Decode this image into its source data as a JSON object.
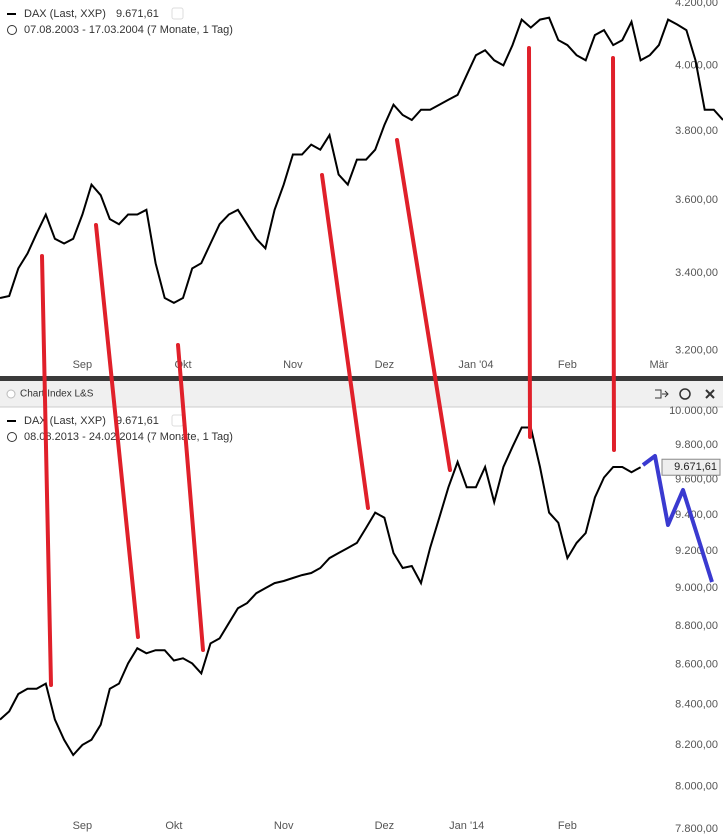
{
  "chart_data": [
    {
      "type": "line",
      "title": "DAX (Last, XXP)",
      "header_value": "9.671,61",
      "subtitle": "07.08.2003 - 17.03.2004 (7 Monate, 1 Tag)",
      "log_scale": true,
      "ylim": [
        3140,
        4210
      ],
      "yticks": [
        {
          "value": 3200,
          "label": "3.200,00"
        },
        {
          "value": 3400,
          "label": "3.400,00"
        },
        {
          "value": 3600,
          "label": "3.600,00"
        },
        {
          "value": 3800,
          "label": "3.800,00"
        },
        {
          "value": 4000,
          "label": "4.000,00"
        },
        {
          "value": 4200,
          "label": "4.200,00"
        }
      ],
      "categories": [
        null,
        null,
        null,
        null,
        null,
        null,
        null,
        null,
        null,
        "Sep",
        null,
        null,
        null,
        null,
        null,
        null,
        null,
        null,
        null,
        null,
        "Okt",
        null,
        null,
        null,
        null,
        null,
        null,
        null,
        null,
        null,
        null,
        null,
        "Nov",
        null,
        null,
        null,
        null,
        null,
        null,
        null,
        null,
        null,
        "Dez",
        null,
        null,
        null,
        null,
        null,
        null,
        null,
        null,
        null,
        "Jan '04",
        null,
        null,
        null,
        null,
        null,
        null,
        null,
        null,
        null,
        "Feb",
        null,
        null,
        null,
        null,
        null,
        null,
        null,
        null,
        null,
        "Mär",
        null,
        null,
        null,
        null,
        null,
        null,
        null
      ],
      "series": [
        {
          "name": "DAX (Last, XXP)",
          "color": "#000000",
          "values": [
            3335,
            3340,
            3413,
            3453,
            3507,
            3560,
            3493,
            3480,
            3493,
            3560,
            3644,
            3614,
            3547,
            3533,
            3560,
            3560,
            3573,
            3427,
            3335,
            3322,
            3335,
            3413,
            3427,
            3480,
            3533,
            3560,
            3573,
            3533,
            3493,
            3467,
            3573,
            3644,
            3731,
            3731,
            3760,
            3745,
            3788,
            3673,
            3644,
            3716,
            3716,
            3745,
            3818,
            3879,
            3848,
            3833,
            3864,
            3864,
            3879,
            3894,
            3909,
            3970,
            4032,
            4048,
            4016,
            4000,
            4064,
            4146,
            4120,
            4146,
            4152,
            4080,
            4064,
            4032,
            4016,
            4096,
            4112,
            4064,
            4080,
            4139,
            4016,
            4032,
            4064,
            4146,
            4130,
            4112,
            4016,
            3864,
            3864,
            3833
          ]
        }
      ]
    },
    {
      "type": "line",
      "toolbar_title": "Chart Index L&S",
      "title": "DAX (Last, XXP)",
      "header_value": "9.671,61",
      "subtitle": "08.08.2013 - 24.02.2014 (7 Monate, 1 Tag)",
      "log_scale": true,
      "ylim": [
        7763,
        10066
      ],
      "yticks": [
        {
          "value": 7800,
          "label": "7.800,00"
        },
        {
          "value": 8000,
          "label": "8.000,00"
        },
        {
          "value": 8200,
          "label": "8.200,00"
        },
        {
          "value": 8400,
          "label": "8.400,00"
        },
        {
          "value": 8600,
          "label": "8.600,00"
        },
        {
          "value": 8800,
          "label": "8.800,00"
        },
        {
          "value": 9000,
          "label": "9.000,00"
        },
        {
          "value": 9200,
          "label": "9.200,00"
        },
        {
          "value": 9400,
          "label": "9.400,00"
        },
        {
          "value": 9600,
          "label": "9.600,00"
        },
        {
          "value": 9800,
          "label": "9.800,00"
        },
        {
          "value": 10000,
          "label": "10.000,00"
        }
      ],
      "last_value": {
        "value": 9671.61,
        "label": "9.671,61"
      },
      "categories": [
        null,
        null,
        null,
        null,
        null,
        null,
        null,
        null,
        null,
        "Sep",
        null,
        null,
        null,
        null,
        null,
        null,
        null,
        null,
        null,
        "Okt",
        null,
        null,
        null,
        null,
        null,
        null,
        null,
        null,
        null,
        null,
        null,
        "Nov",
        null,
        null,
        null,
        null,
        null,
        null,
        null,
        null,
        null,
        null,
        "Dez",
        null,
        null,
        null,
        null,
        null,
        null,
        null,
        null,
        "Jan '14",
        null,
        null,
        null,
        null,
        null,
        null,
        null,
        null,
        null,
        null,
        "Feb",
        null,
        null,
        null,
        null,
        null,
        null,
        null,
        null,
        null,
        null,
        null,
        null,
        null,
        null,
        null,
        null,
        null
      ],
      "series": [
        {
          "name": "DAX (Last, XXP)",
          "color": "#000000",
          "values": [
            8324,
            8365,
            8452,
            8478,
            8478,
            8504,
            8324,
            8225,
            8151,
            8200,
            8225,
            8299,
            8478,
            8504,
            8607,
            8685,
            8659,
            8675,
            8675,
            8622,
            8633,
            8607,
            8556,
            8710,
            8736,
            8815,
            8894,
            8921,
            8974,
            9001,
            9028,
            9039,
            9055,
            9071,
            9082,
            9109,
            9163,
            9191,
            9218,
            9246,
            9329,
            9414,
            9386,
            9191,
            9109,
            9120,
            9028,
            9218,
            9386,
            9557,
            9702,
            9557,
            9557,
            9673,
            9473,
            9673,
            9790,
            9903,
            9903,
            9673,
            9414,
            9358,
            9163,
            9246,
            9301,
            9499,
            9613,
            9673,
            9673,
            9643,
            9671.61,
            null,
            null,
            null,
            null,
            null,
            null,
            null,
            null,
            null
          ]
        }
      ]
    }
  ]
}
